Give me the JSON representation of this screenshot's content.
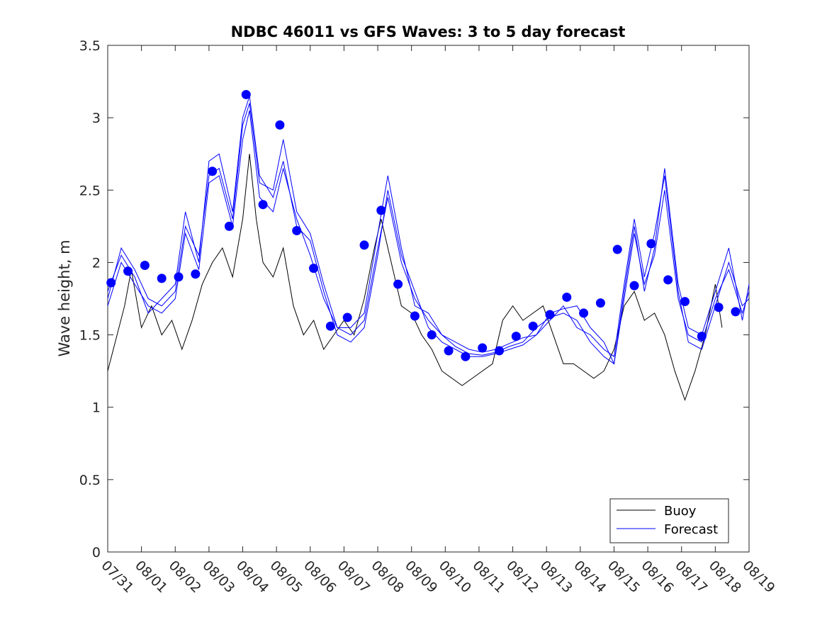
{
  "chart_data": {
    "type": "line",
    "title": "NDBC 46011 vs GFS Waves: 3 to 5 day forecast",
    "xlabel": "",
    "ylabel": "Wave height, m",
    "ylim": [
      0,
      3.5
    ],
    "yticks": [
      0,
      0.5,
      1,
      1.5,
      2,
      2.5,
      3,
      3.5
    ],
    "ytick_labels": [
      "0",
      "0.5",
      "1",
      "1.5",
      "2",
      "2.5",
      "3",
      "3.5"
    ],
    "xlim_days": [
      0,
      19
    ],
    "xtick_labels": [
      "07/31",
      "08/01",
      "08/02",
      "08/03",
      "08/04",
      "08/05",
      "08/06",
      "08/07",
      "08/08",
      "08/09",
      "08/10",
      "08/11",
      "08/12",
      "08/13",
      "08/14",
      "08/15",
      "08/16",
      "08/17",
      "08/18",
      "08/19"
    ],
    "legend": {
      "position": "bottom-right",
      "entries": [
        "Buoy",
        "Forecast"
      ]
    },
    "colors": {
      "buoy": "#000000",
      "forecast": "#0000ff",
      "points": "#0000ff"
    },
    "buoy": {
      "name": "Buoy",
      "x_days": [
        0,
        0.5,
        0.7,
        1.0,
        1.3,
        1.6,
        1.9,
        2.2,
        2.5,
        2.8,
        3.1,
        3.4,
        3.7,
        4.0,
        4.2,
        4.4,
        4.6,
        4.9,
        5.2,
        5.5,
        5.8,
        6.1,
        6.4,
        6.7,
        7.0,
        7.3,
        7.6,
        7.9,
        8.1,
        8.4,
        8.7,
        9.0,
        9.3,
        9.6,
        9.9,
        10.2,
        10.5,
        10.8,
        11.1,
        11.4,
        11.7,
        12.0,
        12.3,
        12.6,
        12.9,
        13.2,
        13.5,
        13.8,
        14.1,
        14.4,
        14.7,
        15.0,
        15.3,
        15.6,
        15.9,
        16.2,
        16.5,
        16.8,
        17.1,
        17.4,
        17.7,
        18.0,
        18.2
      ],
      "values": [
        1.25,
        1.7,
        1.95,
        1.55,
        1.7,
        1.5,
        1.6,
        1.4,
        1.6,
        1.85,
        2.0,
        2.1,
        1.9,
        2.3,
        2.75,
        2.3,
        2.0,
        1.9,
        2.1,
        1.7,
        1.5,
        1.6,
        1.4,
        1.5,
        1.6,
        1.5,
        1.75,
        2.1,
        2.3,
        2.0,
        1.7,
        1.65,
        1.5,
        1.4,
        1.25,
        1.2,
        1.15,
        1.2,
        1.25,
        1.3,
        1.6,
        1.7,
        1.6,
        1.65,
        1.7,
        1.5,
        1.3,
        1.3,
        1.25,
        1.2,
        1.25,
        1.4,
        1.7,
        1.8,
        1.6,
        1.65,
        1.5,
        1.25,
        1.05,
        1.25,
        1.5,
        1.85,
        1.55
      ]
    },
    "forecast_series": [
      {
        "name": "Forecast",
        "x_days": [
          0,
          0.4,
          0.8,
          1.2,
          1.6,
          2.0,
          2.3,
          2.7,
          3.0,
          3.3,
          3.7,
          4.0,
          4.2,
          4.5,
          4.9,
          5.2,
          5.6,
          6.0,
          6.4,
          6.8,
          7.2,
          7.6,
          8.0,
          8.3,
          8.7,
          9.1,
          9.5,
          9.9,
          10.3,
          10.7,
          11.1,
          11.5,
          11.9,
          12.3,
          12.7,
          13.1,
          13.5,
          13.9,
          14.3,
          14.7,
          15.0,
          15.3,
          15.6,
          15.9,
          16.2,
          16.5,
          16.9,
          17.2,
          17.6,
          18.0,
          18.4,
          18.8,
          19.0
        ],
        "values": [
          1.75,
          2.1,
          1.95,
          1.75,
          1.7,
          1.8,
          2.25,
          2.05,
          2.6,
          2.65,
          2.3,
          2.95,
          3.1,
          2.55,
          2.5,
          2.85,
          2.35,
          2.2,
          1.85,
          1.55,
          1.5,
          1.6,
          2.1,
          2.45,
          2.0,
          1.75,
          1.6,
          1.5,
          1.42,
          1.37,
          1.36,
          1.38,
          1.42,
          1.45,
          1.55,
          1.62,
          1.65,
          1.6,
          1.45,
          1.35,
          1.3,
          1.75,
          2.2,
          1.85,
          2.05,
          2.5,
          1.75,
          1.5,
          1.45,
          1.75,
          1.95,
          1.65,
          1.8
        ]
      },
      {
        "name": "Forecast",
        "x_days": [
          0,
          0.4,
          0.8,
          1.2,
          1.6,
          2.0,
          2.3,
          2.7,
          3.0,
          3.3,
          3.7,
          4.0,
          4.2,
          4.5,
          4.9,
          5.2,
          5.6,
          6.0,
          6.4,
          6.8,
          7.2,
          7.6,
          8.0,
          8.3,
          8.7,
          9.1,
          9.5,
          9.9,
          10.3,
          10.7,
          11.1,
          11.5,
          11.9,
          12.3,
          12.7,
          13.1,
          13.5,
          13.9,
          14.3,
          14.7,
          15.0,
          15.3,
          15.6,
          15.9,
          16.2,
          16.5,
          16.9,
          17.2,
          17.6,
          18.0,
          18.4,
          18.8,
          19.0
        ],
        "values": [
          1.8,
          2.05,
          1.9,
          1.65,
          1.75,
          1.85,
          2.35,
          2.0,
          2.7,
          2.75,
          2.35,
          3.0,
          3.15,
          2.6,
          2.45,
          2.7,
          2.25,
          2.15,
          1.8,
          1.5,
          1.45,
          1.55,
          2.05,
          2.5,
          2.05,
          1.8,
          1.55,
          1.45,
          1.4,
          1.35,
          1.35,
          1.37,
          1.4,
          1.43,
          1.5,
          1.6,
          1.7,
          1.55,
          1.5,
          1.4,
          1.35,
          1.85,
          2.3,
          1.9,
          2.2,
          2.6,
          1.8,
          1.45,
          1.4,
          1.7,
          2.0,
          1.7,
          1.75
        ]
      },
      {
        "name": "Forecast",
        "x_days": [
          0,
          0.4,
          0.8,
          1.2,
          1.6,
          2.0,
          2.3,
          2.7,
          3.0,
          3.3,
          3.7,
          4.0,
          4.2,
          4.5,
          4.9,
          5.2,
          5.6,
          6.0,
          6.4,
          6.8,
          7.2,
          7.6,
          8.0,
          8.3,
          8.7,
          9.1,
          9.5,
          9.9,
          10.3,
          10.7,
          11.1,
          11.5,
          11.9,
          12.3,
          12.7,
          13.1,
          13.5,
          13.9,
          14.3,
          14.7,
          15.0,
          15.3,
          15.6,
          15.9,
          16.2,
          16.5,
          16.9,
          17.2,
          17.6,
          18.0,
          18.4,
          18.8,
          19.0
        ],
        "values": [
          1.7,
          2.0,
          1.85,
          1.7,
          1.65,
          1.75,
          2.2,
          1.95,
          2.55,
          2.6,
          2.25,
          2.85,
          3.05,
          2.45,
          2.35,
          2.65,
          2.3,
          2.05,
          1.75,
          1.55,
          1.55,
          1.65,
          2.2,
          2.6,
          2.1,
          1.7,
          1.65,
          1.5,
          1.45,
          1.4,
          1.38,
          1.4,
          1.44,
          1.48,
          1.5,
          1.65,
          1.68,
          1.7,
          1.55,
          1.45,
          1.3,
          1.8,
          2.25,
          1.8,
          2.1,
          2.65,
          1.85,
          1.55,
          1.5,
          1.8,
          2.1,
          1.6,
          1.85
        ]
      }
    ],
    "forecast_points": {
      "x_days": [
        0.1,
        0.6,
        1.1,
        1.6,
        2.1,
        2.6,
        3.1,
        3.6,
        4.1,
        4.6,
        5.1,
        5.6,
        6.1,
        6.6,
        7.1,
        7.6,
        8.1,
        8.6,
        9.1,
        9.6,
        10.1,
        10.6,
        11.1,
        11.6,
        12.1,
        12.6,
        13.1,
        13.6,
        14.1,
        14.6,
        15.1,
        15.6,
        16.1,
        16.6,
        17.1,
        17.6,
        18.1,
        18.6
      ],
      "values": [
        1.86,
        1.94,
        1.98,
        1.89,
        1.9,
        1.92,
        2.63,
        2.25,
        3.16,
        2.4,
        2.95,
        2.22,
        1.96,
        1.56,
        1.62,
        2.12,
        2.36,
        1.85,
        1.63,
        1.5,
        1.39,
        1.35,
        1.41,
        1.39,
        1.49,
        1.56,
        1.64,
        1.76,
        1.65,
        1.72,
        2.09,
        1.84,
        2.13,
        1.88,
        1.73,
        1.49,
        1.69,
        1.66
      ]
    }
  }
}
